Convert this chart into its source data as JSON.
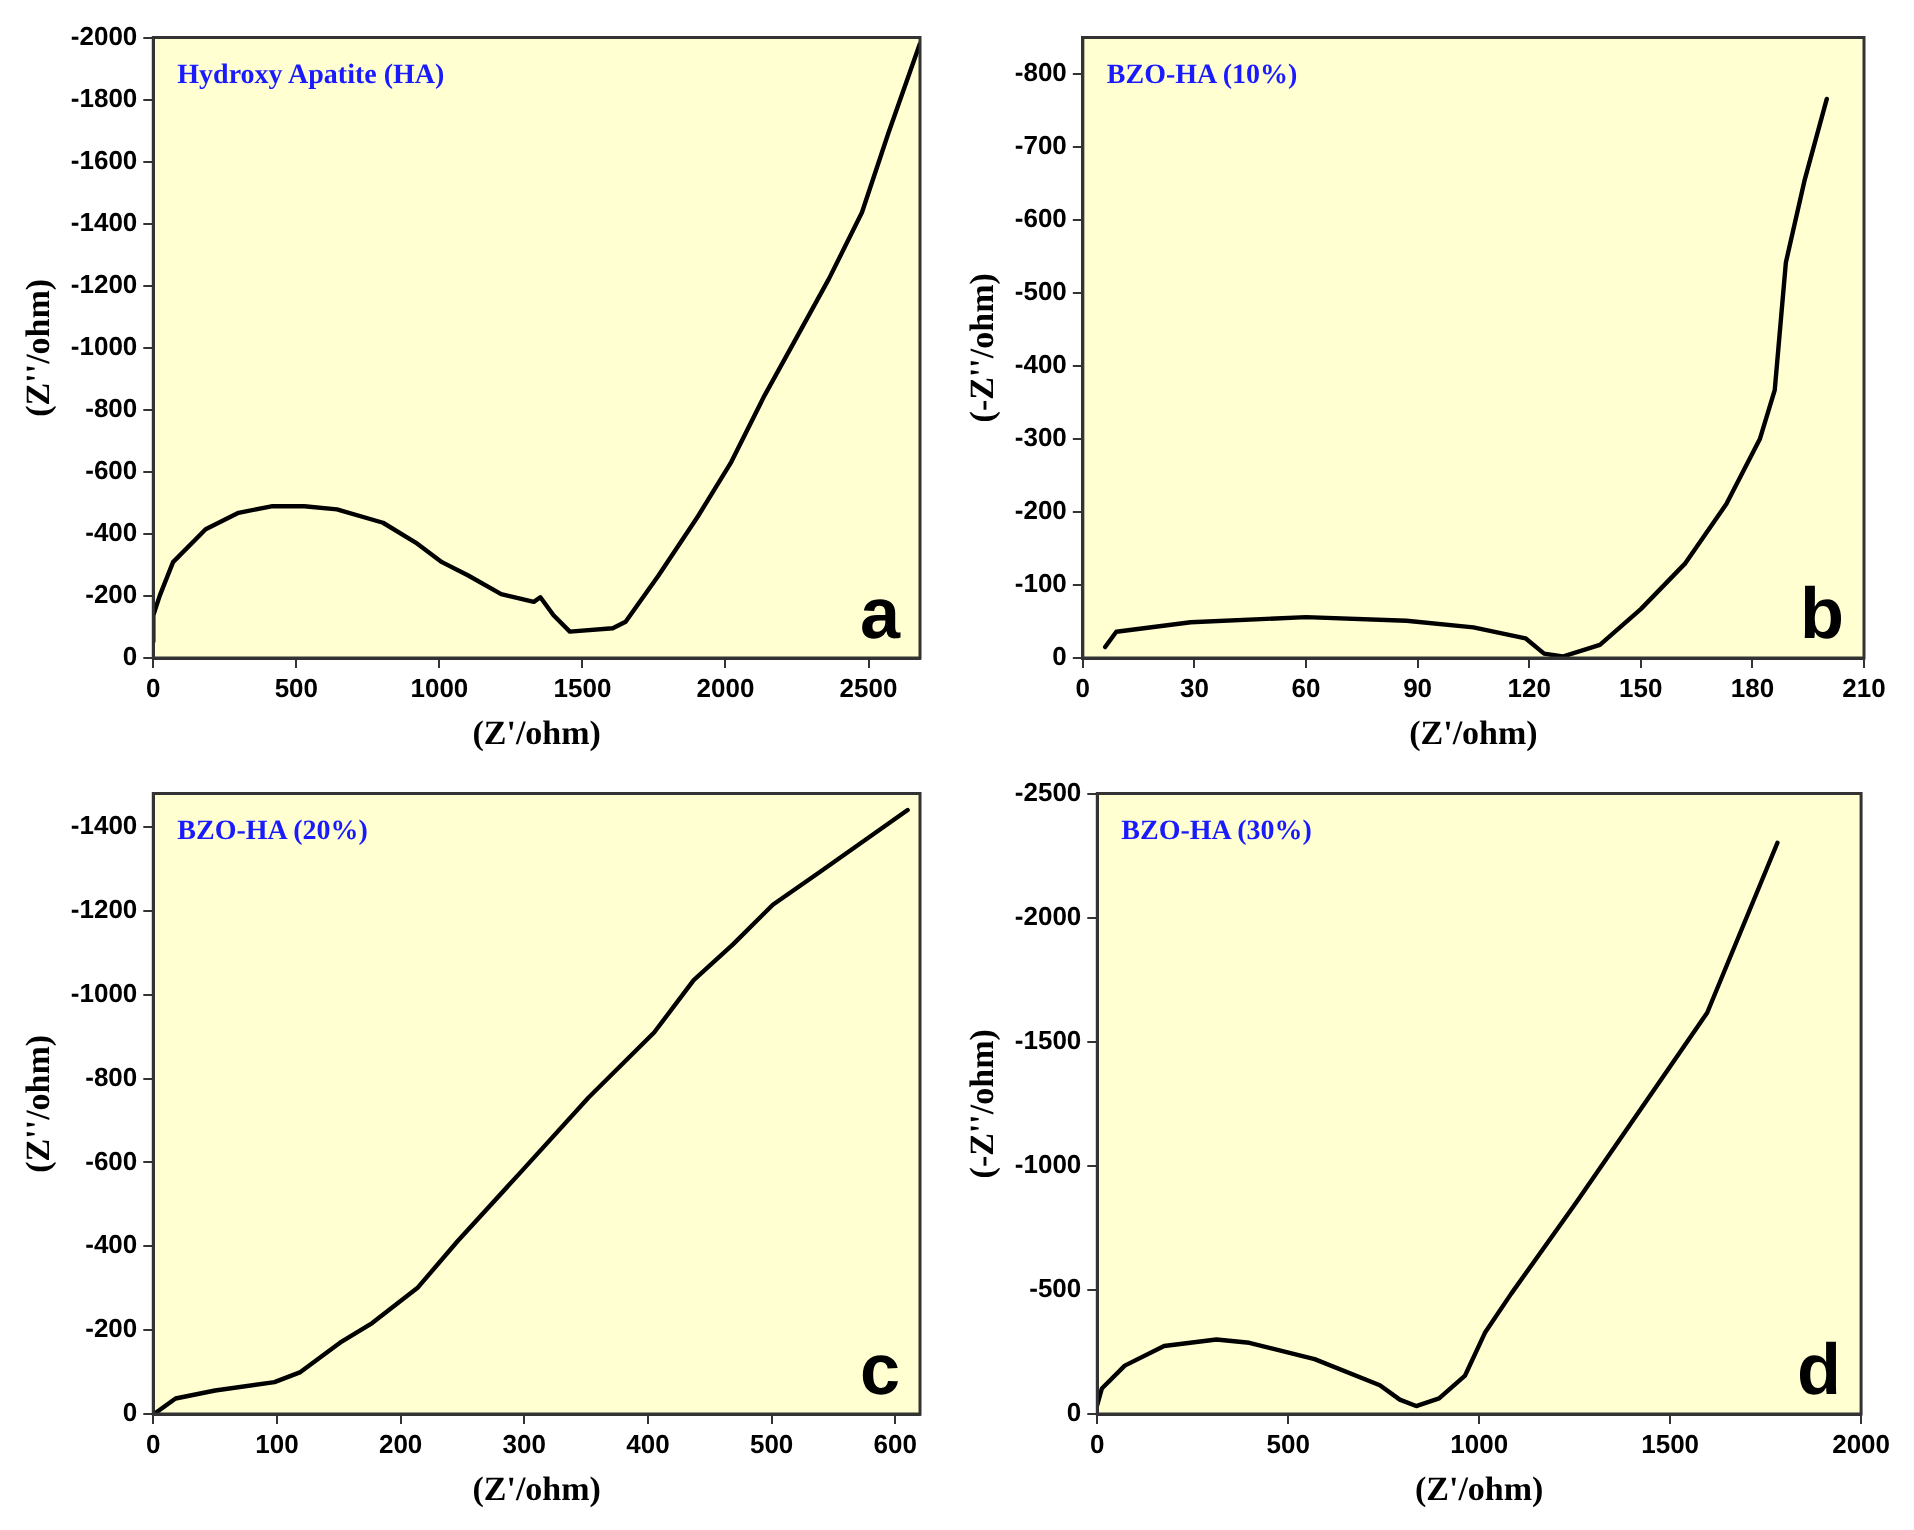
{
  "chart_data": [
    {
      "type": "line",
      "title": "Hydroxy Apatite (HA)",
      "xlabel": "(Z'/ohm)",
      "ylabel": "(Z''/ohm)",
      "annotations": [
        "a"
      ],
      "xlim": [
        0,
        2680
      ],
      "xticks": [
        0,
        500,
        1000,
        1500,
        2000,
        2500
      ],
      "ylim": [
        0,
        -2000
      ],
      "yticks": [
        0,
        -200,
        -400,
        -600,
        -800,
        -1000,
        -1200,
        -1400,
        -1600,
        -1800,
        -2000
      ],
      "grid": false,
      "legend": false,
      "series": [
        {
          "color": "#000000",
          "x": [
            0,
            0,
            23,
            69,
            183,
            298,
            413,
            528,
            642,
            803,
            917,
            1009,
            1101,
            1216,
            1330,
            1353,
            1399,
            1456,
            1606,
            1651,
            1766,
            1904,
            2018,
            2133,
            2248,
            2362,
            2477,
            2569,
            2679
          ],
          "values": [
            -53,
            -138,
            -202,
            -309,
            -415,
            -468,
            -489,
            -489,
            -479,
            -436,
            -372,
            -309,
            -266,
            -206,
            -181,
            -196,
            -138,
            -85,
            -96,
            -117,
            -266,
            -457,
            -628,
            -840,
            -1032,
            -1223,
            -1436,
            -1691,
            -1979
          ]
        }
      ]
    },
    {
      "type": "line",
      "title": "BZO-HA (10%)",
      "xlabel": "(Z'/ohm)",
      "ylabel": "(-Z''/ohm)",
      "annotations": [
        "b"
      ],
      "xlim": [
        0,
        210
      ],
      "xticks": [
        0,
        30,
        60,
        90,
        120,
        150,
        180,
        210
      ],
      "ylim": [
        0,
        -850
      ],
      "yticks": [
        0,
        -100,
        -200,
        -300,
        -400,
        -500,
        -600,
        -700,
        -800
      ],
      "grid": false,
      "legend": false,
      "series": [
        {
          "color": "#000000",
          "x": [
            6,
            9,
            29,
            60,
            87,
            105,
            119,
            124,
            129,
            139,
            150,
            162,
            173,
            182,
            186,
            189,
            194,
            200
          ],
          "values": [
            -15,
            -36,
            -49,
            -56,
            -51,
            -42,
            -27,
            -6,
            -2,
            -18,
            -67,
            -130,
            -211,
            -300,
            -367,
            -542,
            -654,
            -766
          ]
        }
      ]
    },
    {
      "type": "line",
      "title": "BZO-HA (20%)",
      "xlabel": "(Z'/ohm)",
      "ylabel": "(Z''/ohm)",
      "annotations": [
        "c"
      ],
      "xlim": [
        0,
        620
      ],
      "xticks": [
        0,
        100,
        200,
        300,
        400,
        500,
        600
      ],
      "ylim": [
        0,
        -1480
      ],
      "yticks": [
        0,
        -200,
        -400,
        -600,
        -800,
        -1000,
        -1200,
        -1400
      ],
      "grid": false,
      "legend": false,
      "series": [
        {
          "color": "#000000",
          "x": [
            2,
            18,
            50,
            98,
            119,
            151,
            177,
            214,
            246,
            299,
            352,
            405,
            437,
            469,
            501,
            539,
            610
          ],
          "values": [
            -3,
            -37,
            -56,
            -76,
            -100,
            -170,
            -217,
            -302,
            -412,
            -583,
            -755,
            -910,
            -1035,
            -1121,
            -1215,
            -1293,
            -1441
          ]
        }
      ]
    },
    {
      "type": "line",
      "title": "BZO-HA (30%)",
      "xlabel": "(Z'/ohm)",
      "ylabel": "(-Z''/ohm)",
      "annotations": [
        "d"
      ],
      "xlim": [
        0,
        2000
      ],
      "xticks": [
        0,
        500,
        1000,
        1500,
        2000
      ],
      "ylim": [
        0,
        -2500
      ],
      "yticks": [
        0,
        -500,
        -1000,
        -1500,
        -2000,
        -2500
      ],
      "grid": false,
      "legend": false,
      "series": [
        {
          "color": "#000000",
          "x": [
            0,
            12,
            72,
            175,
            312,
            398,
            569,
            740,
            792,
            835,
            895,
            963,
            1015,
            1084,
            1255,
            1426,
            1597,
            1781
          ],
          "values": [
            -37,
            -103,
            -195,
            -274,
            -300,
            -287,
            -221,
            -116,
            -58,
            -32,
            -63,
            -155,
            -327,
            -485,
            -854,
            -1235,
            -1617,
            -2302
          ]
        }
      ]
    }
  ]
}
